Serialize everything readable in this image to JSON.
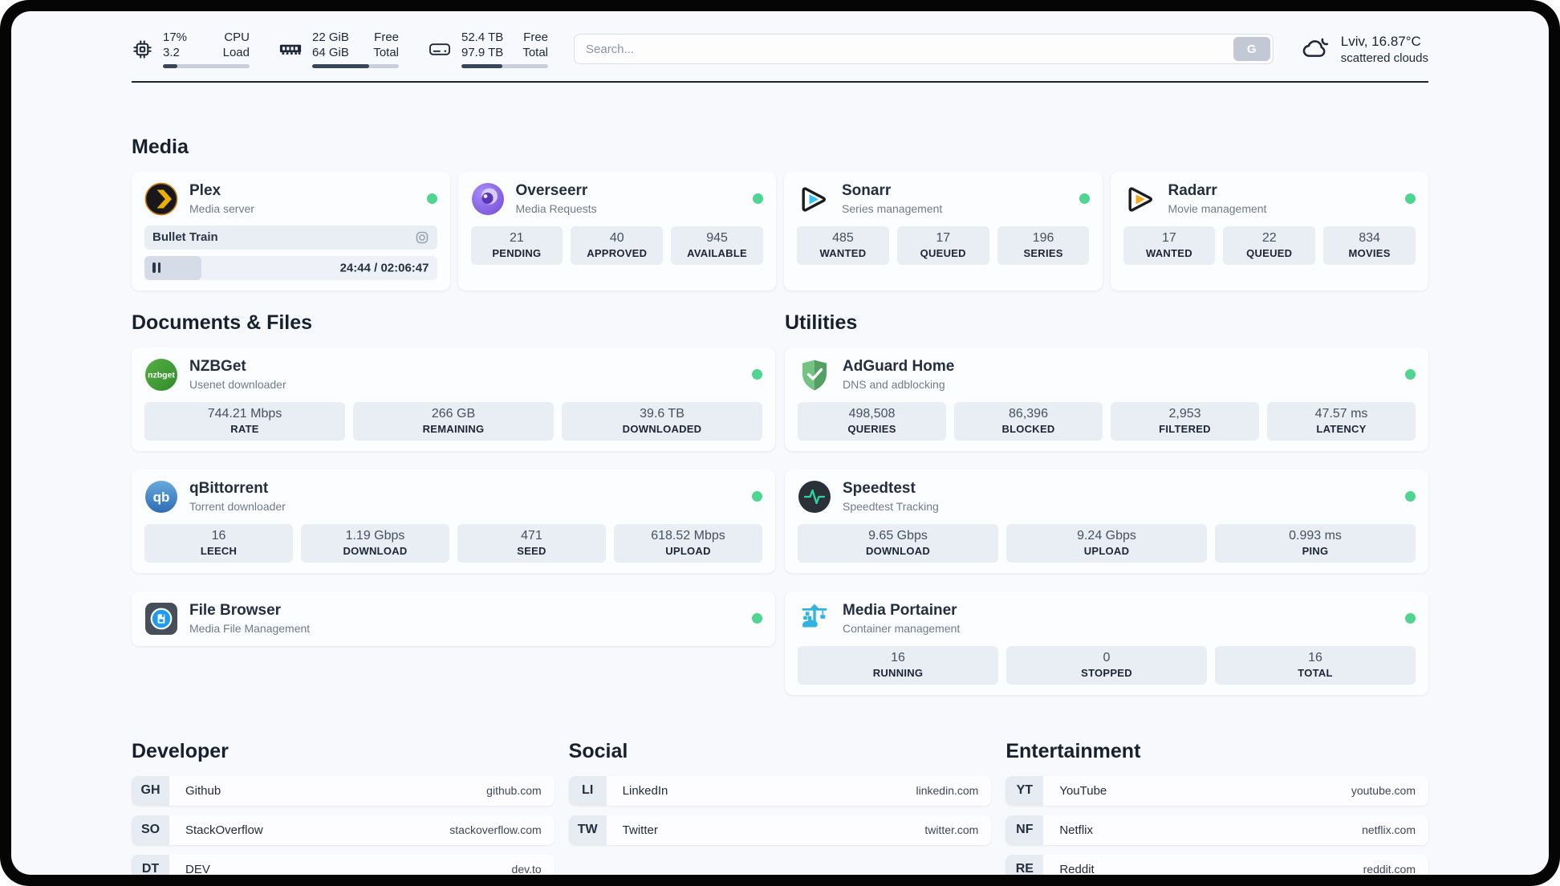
{
  "header": {
    "metrics": [
      {
        "values": [
          "17%",
          "3.2"
        ],
        "labels": [
          "CPU",
          "Load"
        ],
        "progress": 17
      },
      {
        "values": [
          "22 GiB",
          "64 GiB"
        ],
        "labels": [
          "Free",
          "Total"
        ],
        "progress": 66
      },
      {
        "values": [
          "52.4 TB",
          "97.9 TB"
        ],
        "labels": [
          "Free",
          "Total"
        ],
        "progress": 47
      }
    ],
    "search": {
      "placeholder": "Search...",
      "button": "G"
    },
    "weather": {
      "location": "Lviv, 16.87°C",
      "condition": "scattered clouds"
    }
  },
  "sections": {
    "media": "Media",
    "documents": "Documents & Files",
    "utilities": "Utilities"
  },
  "media": {
    "plex": {
      "name": "Plex",
      "subtitle": "Media server",
      "now_playing": "Bullet Train",
      "time": "24:44 / 02:06:47",
      "progress": 19.5
    },
    "overseerr": {
      "name": "Overseerr",
      "subtitle": "Media Requests",
      "stats": [
        {
          "value": "21",
          "label": "PENDING"
        },
        {
          "value": "40",
          "label": "APPROVED"
        },
        {
          "value": "945",
          "label": "AVAILABLE"
        }
      ]
    },
    "sonarr": {
      "name": "Sonarr",
      "subtitle": "Series management",
      "stats": [
        {
          "value": "485",
          "label": "WANTED"
        },
        {
          "value": "17",
          "label": "QUEUED"
        },
        {
          "value": "196",
          "label": "SERIES"
        }
      ]
    },
    "radarr": {
      "name": "Radarr",
      "subtitle": "Movie management",
      "stats": [
        {
          "value": "17",
          "label": "WANTED"
        },
        {
          "value": "22",
          "label": "QUEUED"
        },
        {
          "value": "834",
          "label": "MOVIES"
        }
      ]
    }
  },
  "documents": {
    "nzbget": {
      "name": "NZBGet",
      "subtitle": "Usenet downloader",
      "stats": [
        {
          "value": "744.21 Mbps",
          "label": "RATE"
        },
        {
          "value": "266 GB",
          "label": "REMAINING"
        },
        {
          "value": "39.6 TB",
          "label": "DOWNLOADED"
        }
      ]
    },
    "qbittorrent": {
      "name": "qBittorrent",
      "subtitle": "Torrent downloader",
      "stats": [
        {
          "value": "16",
          "label": "LEECH"
        },
        {
          "value": "1.19 Gbps",
          "label": "DOWNLOAD"
        },
        {
          "value": "471",
          "label": "SEED"
        },
        {
          "value": "618.52 Mbps",
          "label": "UPLOAD"
        }
      ]
    },
    "filebrowser": {
      "name": "File Browser",
      "subtitle": "Media File Management"
    }
  },
  "utilities": {
    "adguard": {
      "name": "AdGuard Home",
      "subtitle": "DNS and adblocking",
      "stats": [
        {
          "value": "498,508",
          "label": "QUERIES"
        },
        {
          "value": "86,396",
          "label": "BLOCKED"
        },
        {
          "value": "2,953",
          "label": "FILTERED"
        },
        {
          "value": "47.57 ms",
          "label": "LATENCY"
        }
      ]
    },
    "speedtest": {
      "name": "Speedtest",
      "subtitle": "Speedtest Tracking",
      "stats": [
        {
          "value": "9.65 Gbps",
          "label": "DOWNLOAD"
        },
        {
          "value": "9.24 Gbps",
          "label": "UPLOAD"
        },
        {
          "value": "0.993 ms",
          "label": "PING"
        }
      ]
    },
    "portainer": {
      "name": "Media Portainer",
      "subtitle": "Container management",
      "stats": [
        {
          "value": "16",
          "label": "RUNNING"
        },
        {
          "value": "0",
          "label": "STOPPED"
        },
        {
          "value": "16",
          "label": "TOTAL"
        }
      ]
    }
  },
  "bookmarks": {
    "developer": {
      "title": "Developer",
      "items": [
        {
          "abbr": "GH",
          "name": "Github",
          "url": "github.com"
        },
        {
          "abbr": "SO",
          "name": "StackOverflow",
          "url": "stackoverflow.com"
        },
        {
          "abbr": "DT",
          "name": "DEV",
          "url": "dev.to"
        }
      ]
    },
    "social": {
      "title": "Social",
      "items": [
        {
          "abbr": "LI",
          "name": "LinkedIn",
          "url": "linkedin.com"
        },
        {
          "abbr": "TW",
          "name": "Twitter",
          "url": "twitter.com"
        }
      ]
    },
    "entertainment": {
      "title": "Entertainment",
      "items": [
        {
          "abbr": "YT",
          "name": "YouTube",
          "url": "youtube.com"
        },
        {
          "abbr": "NF",
          "name": "Netflix",
          "url": "netflix.com"
        },
        {
          "abbr": "RE",
          "name": "Reddit",
          "url": "reddit.com"
        }
      ]
    }
  },
  "colors": {
    "status_online": "#4ed691",
    "progress_fill": "#39455a",
    "accent_dark": "#1b2434"
  }
}
